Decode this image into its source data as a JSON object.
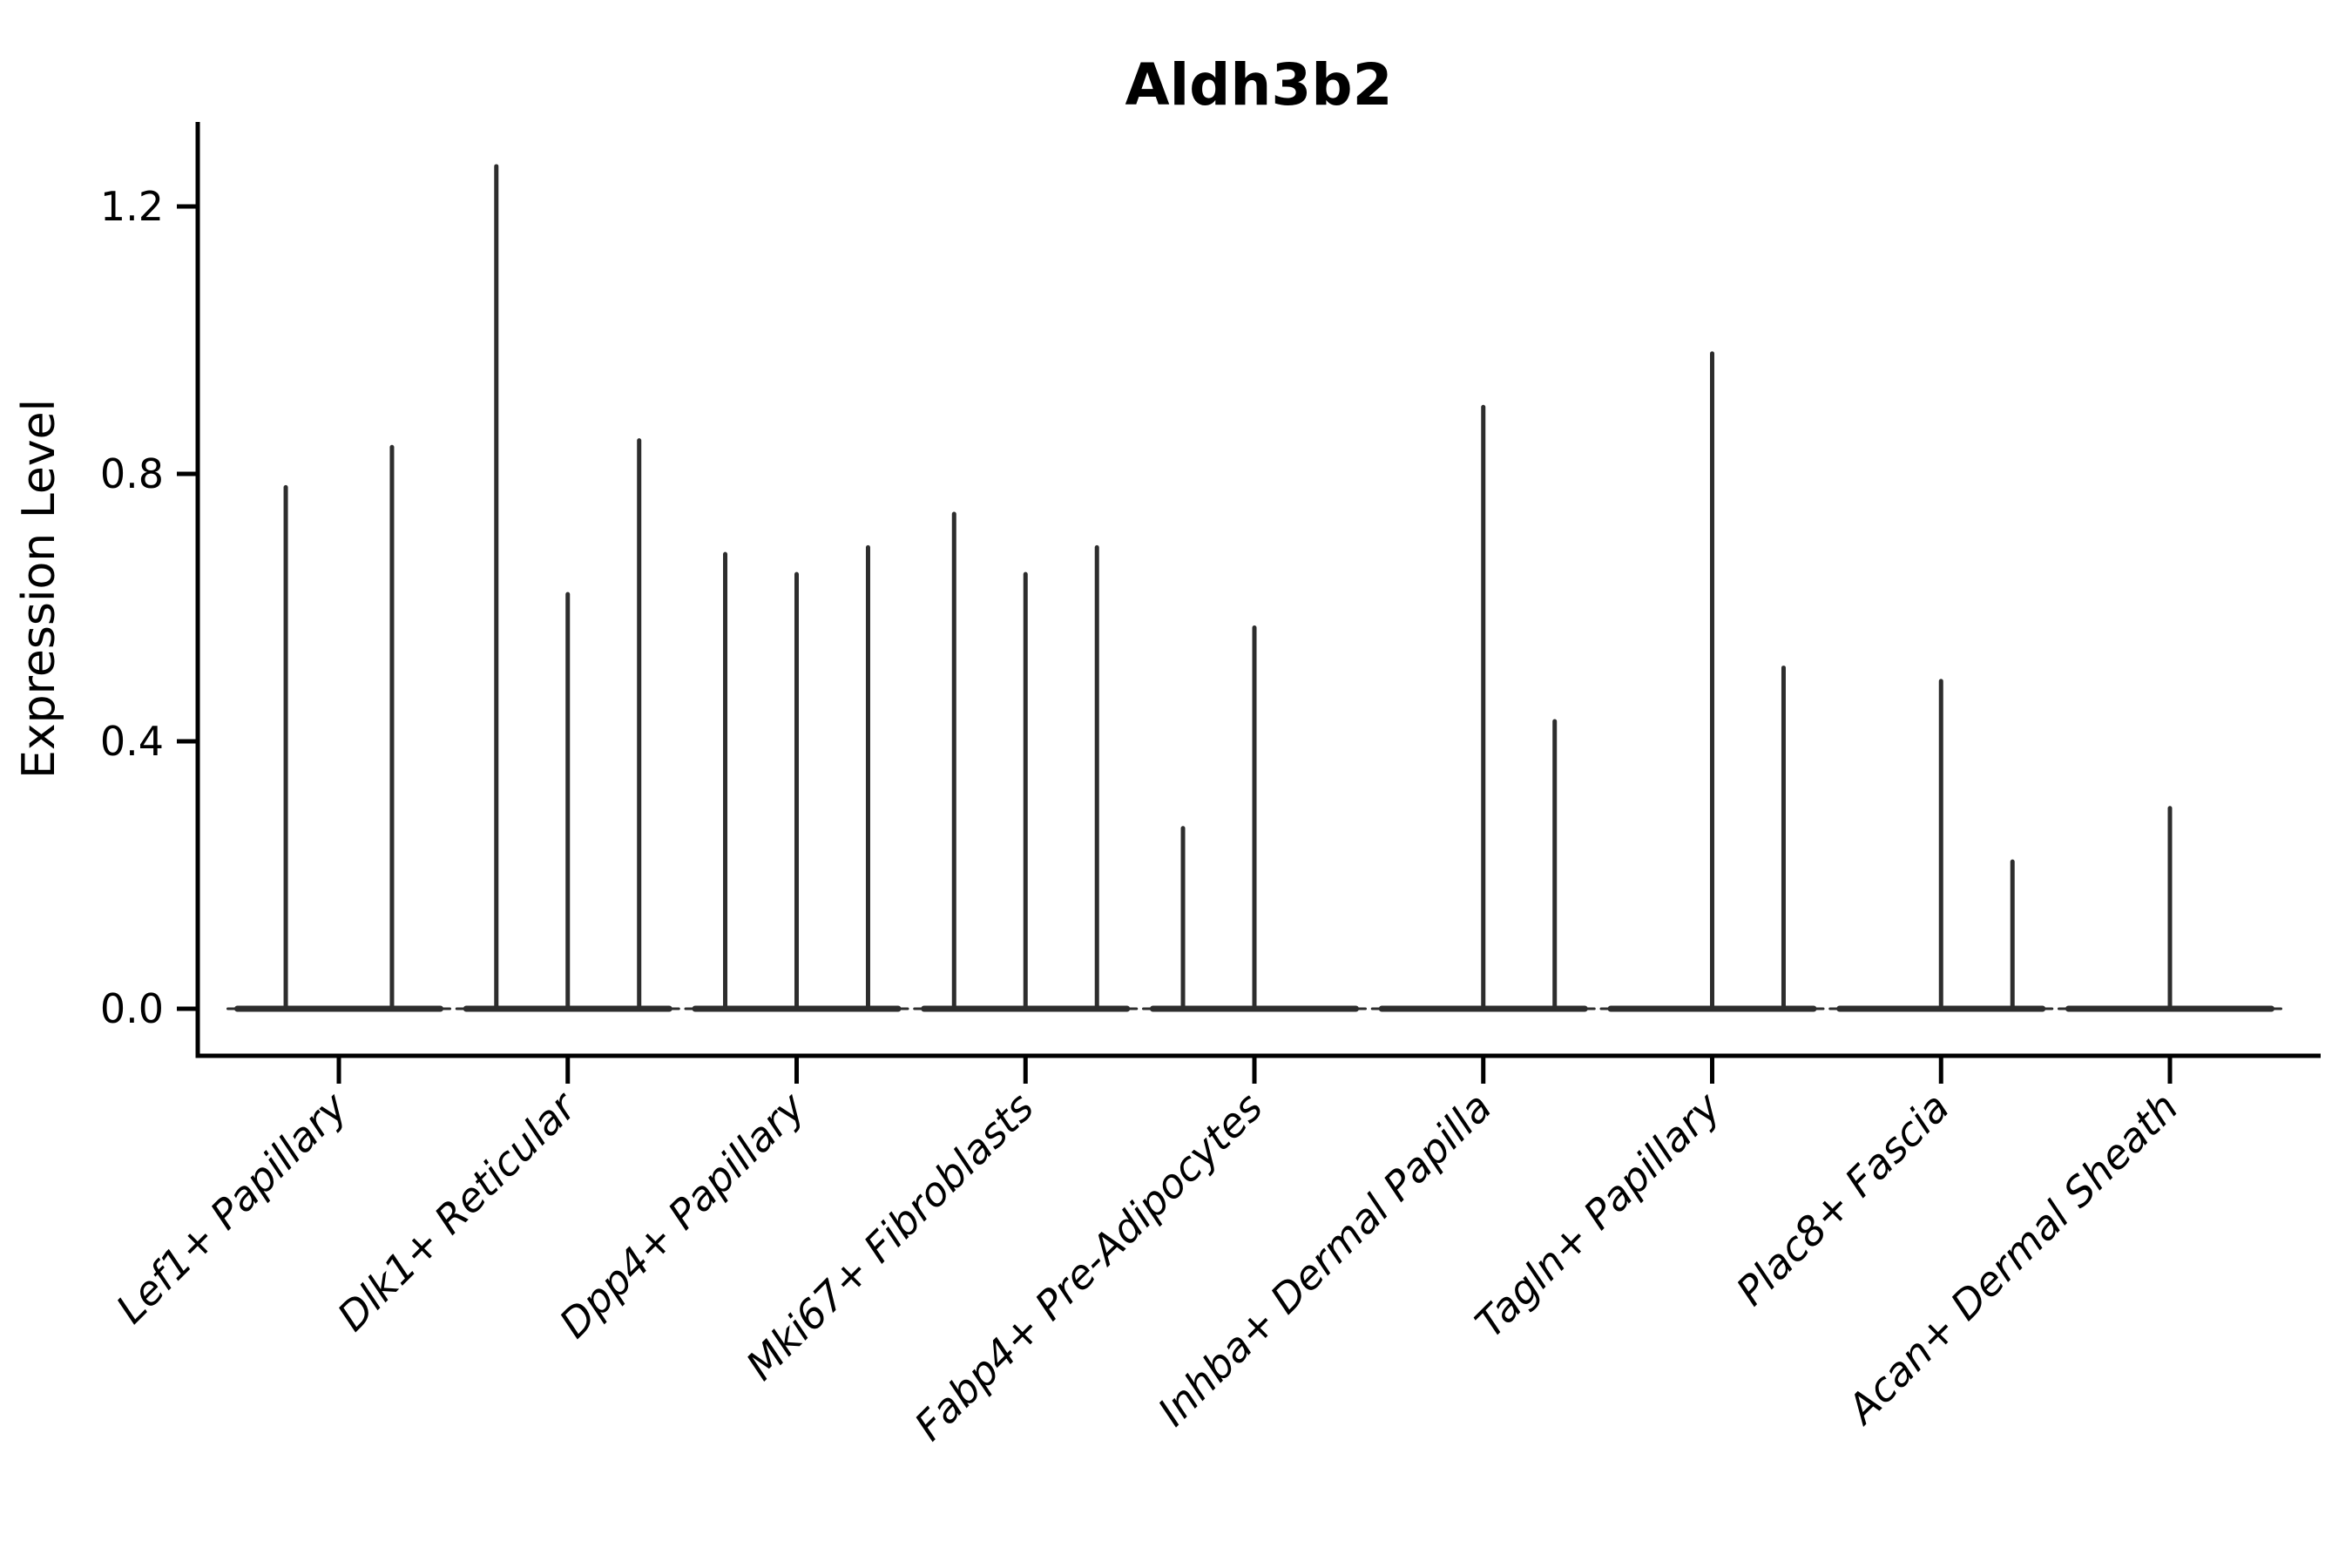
{
  "figure": {
    "title": "Aldh3b2",
    "background_color": "#ffffff",
    "axis_color": "#000000",
    "text_color": "#000000",
    "violin_color": "#2d2d2d"
  },
  "chart_data": {
    "type": "violin",
    "title": "Aldh3b2",
    "xlabel": "",
    "ylabel": "Expression Level",
    "ylim": [
      -0.07,
      1.35
    ],
    "yticks": [
      0.0,
      0.4,
      0.8,
      1.2
    ],
    "ytick_labels": [
      "0.0",
      "0.4",
      "0.8",
      "1.2"
    ],
    "grid": false,
    "legend": "none",
    "description": "Single-gene expression violin plot across 9 fibroblast cell-type clusters; each cluster shows a flat violin base at 0 expression with 1-3 thin sub-violin spikes rising to the maximum expression value.",
    "categories": [
      "Lef1+ Papillary",
      "Dlk1+ Reticular",
      "Dpp4+ Papillary",
      "Mki67+ Fibroblasts",
      "Fabp4+ Pre-Adipocytes",
      "Inhba+ Dermal Papilla",
      "Tagln+ Papillary",
      "Plac8+ Fascia",
      "Acan+ Dermal Sheath"
    ],
    "series": [
      {
        "category": "Lef1+ Papillary",
        "spikes": [
          {
            "slot": -0.232,
            "max": 0.78
          },
          {
            "slot": 0.232,
            "max": 0.84
          }
        ]
      },
      {
        "category": "Dlk1+ Reticular",
        "spikes": [
          {
            "slot": -0.312,
            "max": 1.26
          },
          {
            "slot": 0.0,
            "max": 0.62
          },
          {
            "slot": 0.312,
            "max": 0.85
          }
        ]
      },
      {
        "category": "Dpp4+ Papillary",
        "spikes": [
          {
            "slot": -0.312,
            "max": 0.68
          },
          {
            "slot": 0.0,
            "max": 0.65
          },
          {
            "slot": 0.312,
            "max": 0.69
          }
        ]
      },
      {
        "category": "Mki67+ Fibroblasts",
        "spikes": [
          {
            "slot": -0.312,
            "max": 0.74
          },
          {
            "slot": 0.0,
            "max": 0.65
          },
          {
            "slot": 0.312,
            "max": 0.69
          }
        ]
      },
      {
        "category": "Fabp4+ Pre-Adipocytes",
        "spikes": [
          {
            "slot": -0.312,
            "max": 0.27
          },
          {
            "slot": 0.0,
            "max": 0.57
          }
        ]
      },
      {
        "category": "Inhba+ Dermal Papilla",
        "spikes": [
          {
            "slot": 0.0,
            "max": 0.9
          },
          {
            "slot": 0.312,
            "max": 0.43
          }
        ]
      },
      {
        "category": "Tagln+ Papillary",
        "spikes": [
          {
            "slot": 0.0,
            "max": 0.98
          },
          {
            "slot": 0.312,
            "max": 0.51
          }
        ]
      },
      {
        "category": "Plac8+ Fascia",
        "spikes": [
          {
            "slot": 0.0,
            "max": 0.49
          },
          {
            "slot": 0.312,
            "max": 0.22
          }
        ]
      },
      {
        "category": "Acan+ Dermal Sheath",
        "spikes": [
          {
            "slot": 0.0,
            "max": 0.3
          }
        ]
      }
    ]
  }
}
